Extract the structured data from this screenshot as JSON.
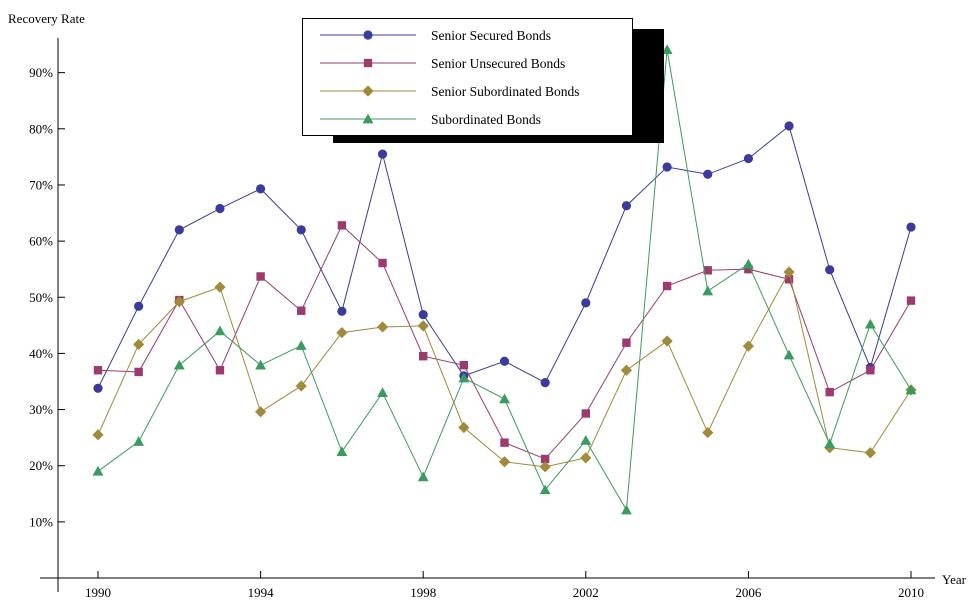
{
  "chart_data": {
    "type": "line",
    "title": "",
    "xlabel": "Year",
    "ylabel": "Recovery Rate",
    "xlim": [
      1989.1,
      2010.5
    ],
    "ylim": [
      0.0,
      1.0
    ],
    "x_ticks": [
      {
        "value": 1990,
        "label": "1990"
      },
      {
        "value": 1994,
        "label": "1994"
      },
      {
        "value": 1998,
        "label": "1998"
      },
      {
        "value": 2002,
        "label": "2002"
      },
      {
        "value": 2006,
        "label": "2006"
      },
      {
        "value": 2010,
        "label": "2010"
      }
    ],
    "y_ticks": [
      {
        "value": 0.1,
        "label": "10%"
      },
      {
        "value": 0.2,
        "label": "20%"
      },
      {
        "value": 0.3,
        "label": "30%"
      },
      {
        "value": 0.4,
        "label": "40%"
      },
      {
        "value": 0.5,
        "label": "50%"
      },
      {
        "value": 0.6,
        "label": "60%"
      },
      {
        "value": 0.7,
        "label": "70%"
      },
      {
        "value": 0.8,
        "label": "80%"
      },
      {
        "value": 0.9,
        "label": "90%"
      }
    ],
    "legend_position": "top-center",
    "grid": false,
    "x": [
      1990,
      1991,
      1992,
      1993,
      1994,
      1995,
      1996,
      1997,
      1998,
      1999,
      2000,
      2001,
      2002,
      2003,
      2004,
      2005,
      2006,
      2007,
      2008,
      2009,
      2010
    ],
    "series": [
      {
        "name": "Senior Secured Bonds",
        "color": "#3b3b9b",
        "marker": "circle",
        "values": [
          0.338,
          0.484,
          0.62,
          0.658,
          0.693,
          0.62,
          0.475,
          0.755,
          0.469,
          0.36,
          0.386,
          0.348,
          0.49,
          0.663,
          0.732,
          0.719,
          0.747,
          0.805,
          0.549,
          0.375,
          0.625
        ]
      },
      {
        "name": "Senior Unsecured Bonds",
        "color": "#9b3b6e",
        "marker": "square",
        "values": [
          0.37,
          0.367,
          0.495,
          0.37,
          0.537,
          0.476,
          0.628,
          0.561,
          0.395,
          0.379,
          0.241,
          0.212,
          0.293,
          0.419,
          0.52,
          0.548,
          0.55,
          0.532,
          0.331,
          0.37,
          0.494
        ]
      },
      {
        "name": "Senior Subordinated Bonds",
        "color": "#a08a3b",
        "marker": "diamond",
        "values": [
          0.255,
          0.416,
          0.492,
          0.518,
          0.296,
          0.342,
          0.437,
          0.447,
          0.449,
          0.268,
          0.207,
          0.198,
          0.214,
          0.37,
          0.422,
          0.259,
          0.413,
          0.545,
          0.232,
          0.223,
          0.335
        ]
      },
      {
        "name": "Subordinated Bonds",
        "color": "#3b9b5e",
        "marker": "triangle",
        "values": [
          0.19,
          0.243,
          0.379,
          0.44,
          0.379,
          0.414,
          0.225,
          0.33,
          0.18,
          0.356,
          0.319,
          0.157,
          0.245,
          0.121,
          0.941,
          0.511,
          0.559,
          0.397,
          0.239,
          0.452,
          0.335
        ]
      }
    ]
  }
}
